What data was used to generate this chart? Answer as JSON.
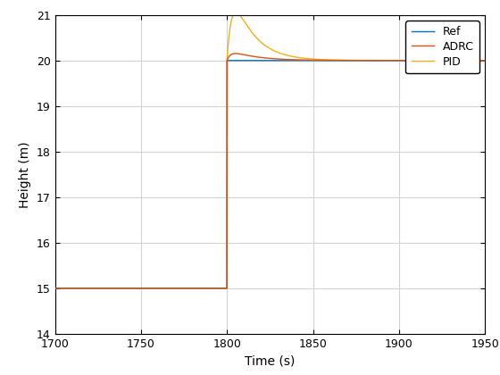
{
  "xlabel": "Time (s)",
  "ylabel": "Height (m)",
  "xlim": [
    1700,
    1950
  ],
  "ylim": [
    14,
    21
  ],
  "xticks": [
    1700,
    1750,
    1800,
    1850,
    1900,
    1950
  ],
  "yticks": [
    14,
    15,
    16,
    17,
    18,
    19,
    20,
    21
  ],
  "ref_color": "#0072BD",
  "adrc_color": "#D95319",
  "pid_color": "#EDB120",
  "step_time": 1800,
  "val_before": 15.0,
  "val_after": 20.0,
  "adrc_rise_tau": 2.5,
  "adrc_overshoot_amp": 0.05,
  "adrc_overshoot_tau": 15.0,
  "pid_rise_tau": 3.5,
  "pid_overshoot_amp": 0.42,
  "pid_overshoot_tau": 12.0,
  "background_color": "#ffffff",
  "grid_color": "#d3d3d3",
  "legend_labels": [
    "Ref",
    "ADRC",
    "PID"
  ],
  "linewidth": 1.0,
  "figwidth": 5.6,
  "figheight": 4.2,
  "dpi": 100
}
